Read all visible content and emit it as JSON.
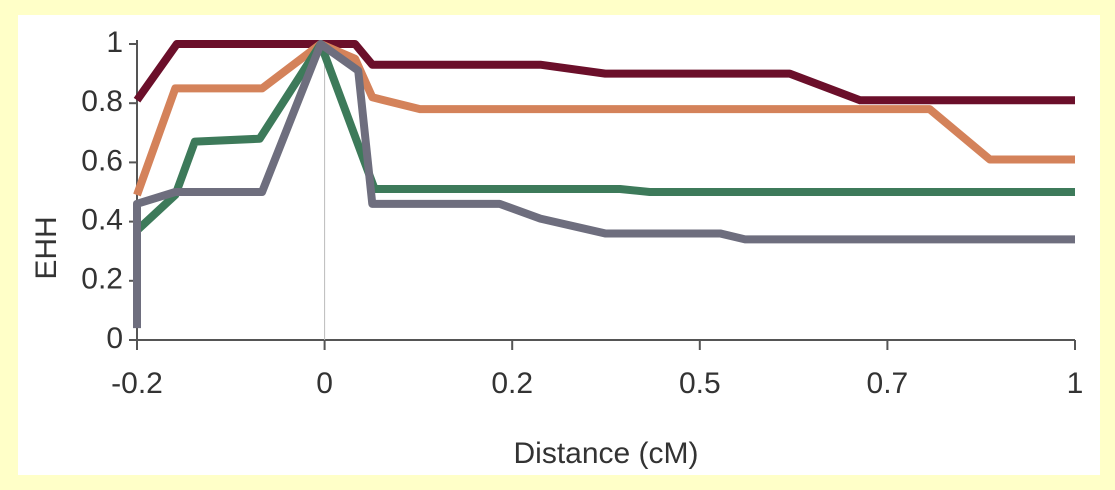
{
  "chart_data": {
    "type": "line",
    "x_label": "Distance (cM)",
    "y_label": "EHH",
    "xlim": [
      -0.24,
      0.96
    ],
    "xticks": [
      {
        "value": -0.24,
        "label": "-0.2"
      },
      0,
      {
        "value": 0.24,
        "label": "0.2"
      },
      {
        "value": 0.48,
        "label": "0.5"
      },
      {
        "value": 0.72,
        "label": "0.7"
      },
      {
        "value": 0.96,
        "label": "1"
      }
    ],
    "ylim": [
      0,
      1
    ],
    "yticks": [
      0,
      0.2,
      0.4,
      0.6,
      0.8,
      1
    ],
    "vline": 0,
    "series": [
      {
        "color": "#6b0f2a",
        "x": [
          -0.24,
          -0.189,
          0.039,
          0.061,
          0.276,
          0.359,
          0.595,
          0.685,
          0.96
        ],
        "values": [
          0.81,
          1,
          1,
          0.93,
          0.93,
          0.9,
          0.9,
          0.81,
          0.81
        ]
      },
      {
        "color": "#d4825a",
        "x": [
          -0.24,
          -0.191,
          -0.08,
          -0.005,
          0.039,
          0.061,
          0.122,
          0.774,
          0.851,
          0.96
        ],
        "values": [
          0.49,
          0.85,
          0.85,
          1,
          0.95,
          0.82,
          0.78,
          0.78,
          0.61,
          0.61
        ]
      },
      {
        "color": "#3d7a5a",
        "x": [
          -0.24,
          -0.191,
          -0.166,
          -0.083,
          -0.005,
          0.064,
          0.378,
          0.416,
          0.96
        ],
        "values": [
          0.37,
          0.49,
          0.67,
          0.68,
          1,
          0.51,
          0.51,
          0.5,
          0.5
        ]
      },
      {
        "color": "#6e6e7e",
        "x": [
          -0.24,
          -0.24,
          -0.191,
          -0.08,
          -0.005,
          0.043,
          0.061,
          0.224,
          0.276,
          0.359,
          0.506,
          0.538,
          0.96
        ],
        "values": [
          0.04,
          0.46,
          0.5,
          0.5,
          1,
          0.91,
          0.46,
          0.46,
          0.41,
          0.36,
          0.36,
          0.34,
          0.34
        ]
      }
    ]
  }
}
